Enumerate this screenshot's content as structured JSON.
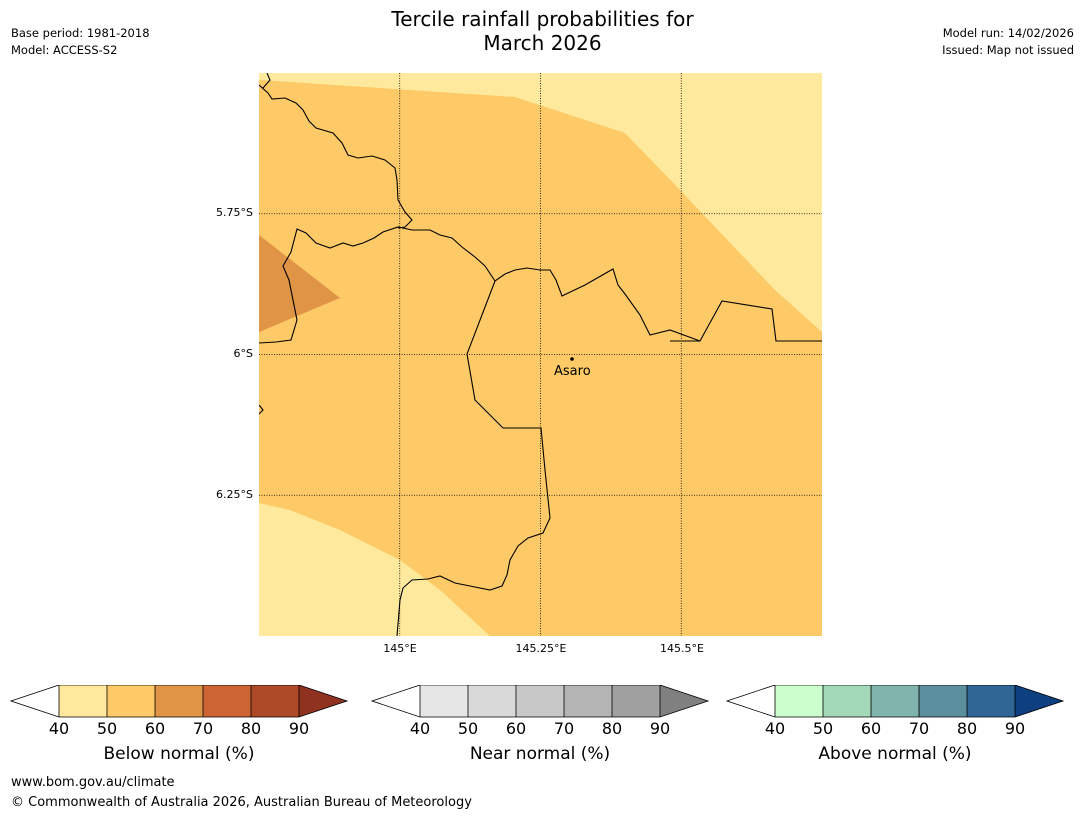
{
  "title_line1": "Tercile rainfall probabilities for",
  "title_line2": "March 2026",
  "meta_left": {
    "base_period": "Base period: 1981-2018",
    "model": "Model: ACCESS-S2"
  },
  "meta_right": {
    "model_run": "Model run: 14/02/2026",
    "issued": "Issued: Map not issued"
  },
  "lat_labels": [
    "5.75°S",
    "6°S",
    "6.25°S"
  ],
  "lon_labels": [
    "145°E",
    "145.25°E",
    "145.5°E"
  ],
  "place": {
    "name": "Asaro"
  },
  "colors": {
    "prob_40_50": "#fee99d",
    "prob_50_60": "#fdca67",
    "prob_60_70": "#e09446"
  },
  "colorbars": [
    {
      "title": "Below normal (%)",
      "ticks": [
        "40",
        "50",
        "60",
        "70",
        "80",
        "90"
      ],
      "colors": [
        "#ffffff",
        "#fee99d",
        "#fdca67",
        "#e09446",
        "#cc6533",
        "#ae4a28",
        "#8f3320"
      ]
    },
    {
      "title": "Near normal (%)",
      "ticks": [
        "40",
        "50",
        "60",
        "70",
        "80",
        "90"
      ],
      "colors": [
        "#ffffff",
        "#e6e6e6",
        "#d9d9d9",
        "#c8c8c8",
        "#b4b4b4",
        "#a0a0a0",
        "#808080"
      ]
    },
    {
      "title": "Above normal (%)",
      "ticks": [
        "40",
        "50",
        "60",
        "70",
        "80",
        "90"
      ],
      "colors": [
        "#ffffff",
        "#ccfdcc",
        "#a3d9b9",
        "#80b4ad",
        "#5b8f9d",
        "#2f6696",
        "#0e3f7e"
      ]
    }
  ],
  "footer": {
    "url": "www.bom.gov.au/climate",
    "copyright": "© Commonwealth of Australia 2026, Australian Bureau of Meteorology"
  }
}
